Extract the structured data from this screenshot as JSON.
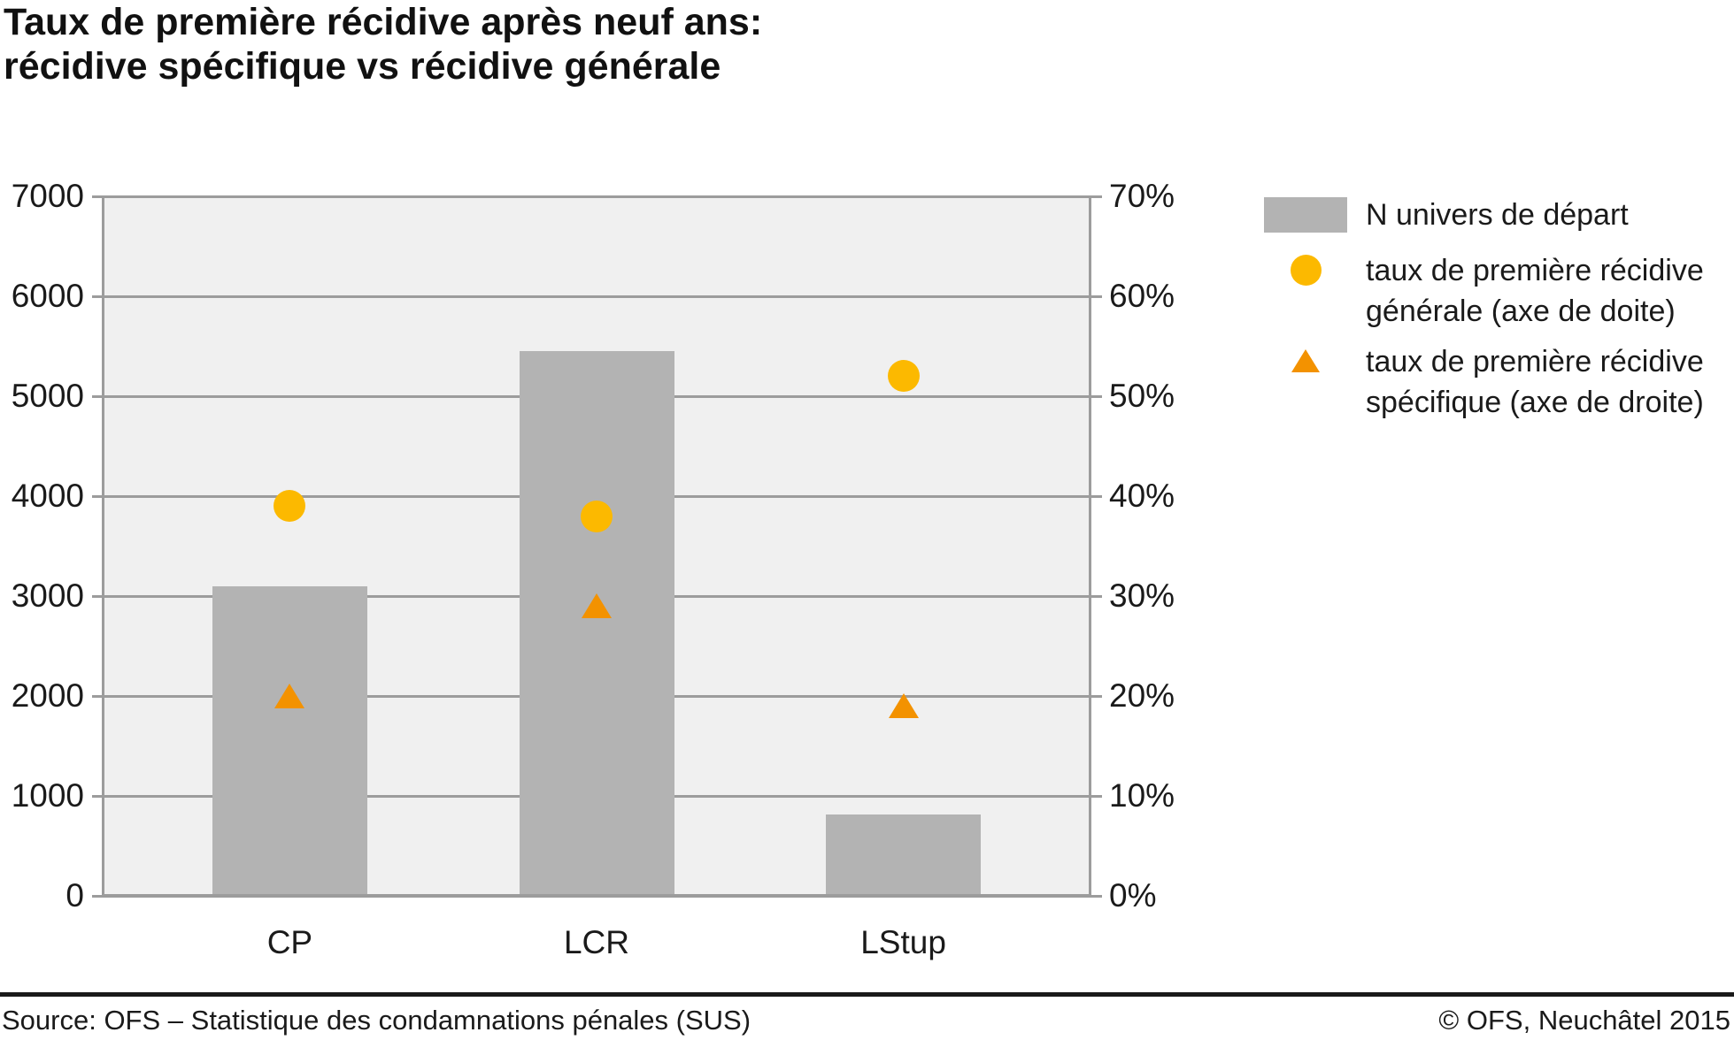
{
  "title": {
    "line1": "Taux de première récidive après neuf ans:",
    "line2": "récidive spécifique vs récidive générale"
  },
  "chart_data": {
    "type": "combo",
    "categories": [
      "CP",
      "LCR",
      "LStup"
    ],
    "series": [
      {
        "name": "N univers de départ",
        "type": "bar",
        "axis": "left",
        "values": [
          3100,
          5450,
          810
        ],
        "color": "#b3b3b3"
      },
      {
        "name": "taux de première récidive générale (axe de doite)",
        "type": "point-circle",
        "axis": "right",
        "values": [
          39,
          38,
          52
        ],
        "unit": "%",
        "color": "#fcb900"
      },
      {
        "name": "taux de première récidive spécifique (axe de droite)",
        "type": "point-triangle",
        "axis": "right",
        "values": [
          20,
          29,
          19
        ],
        "unit": "%",
        "color": "#f39200"
      }
    ],
    "left_axis": {
      "min": 0,
      "max": 7000,
      "ticks": [
        0,
        1000,
        2000,
        3000,
        4000,
        5000,
        6000,
        7000
      ]
    },
    "right_axis": {
      "min": 0,
      "max": 70,
      "ticks": [
        0,
        10,
        20,
        30,
        40,
        50,
        60,
        70
      ],
      "suffix": "%"
    },
    "grid": true,
    "legend_position": "right",
    "plot_background": "#f0f0f0",
    "grid_color": "#9c9c9c"
  },
  "legend": {
    "items": [
      {
        "label": "N univers de départ"
      },
      {
        "line1": "taux de première récidive",
        "line2": "générale (axe de doite)"
      },
      {
        "line1": "taux de première récidive",
        "line2": "spécifique (axe de droite)"
      }
    ]
  },
  "footer": {
    "source": "Source: OFS – Statistique des condamnations pénales (SUS)",
    "copyright": "© OFS, Neuchâtel 2015"
  }
}
